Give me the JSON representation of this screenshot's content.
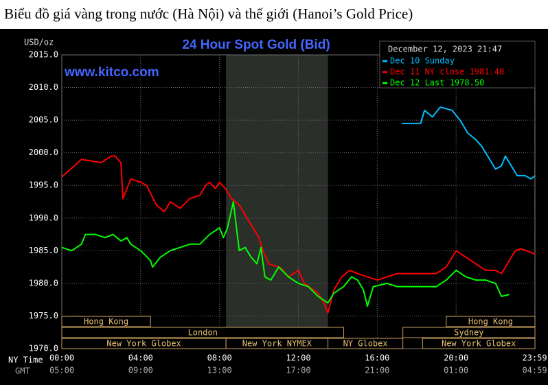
{
  "page_title": "Biểu đồ giá vàng trong nước (Hà Nội) và thế giới (Hanoi’s Gold Price)",
  "chart_data": {
    "type": "line",
    "title": "24 Hour Spot Gold (Bid)",
    "watermark": "www.kitco.com",
    "y_unit": "USD/oz",
    "timestamp": "December 12, 2023 21:47",
    "x_row_labels": [
      "NY Time",
      "GMT"
    ],
    "xlim": [
      0,
      24
    ],
    "xticks": [
      {
        "value": 0,
        "label": "00:00"
      },
      {
        "value": 4,
        "label": "04:00"
      },
      {
        "value": 8,
        "label": "08:00"
      },
      {
        "value": 12,
        "label": "12:00"
      },
      {
        "value": 16,
        "label": "16:00"
      },
      {
        "value": 20,
        "label": "20:00"
      },
      {
        "value": 23.983,
        "label": "23:59"
      }
    ],
    "gmt_labels": [
      "05:00",
      "09:00",
      "13:00",
      "17:00",
      "21:00",
      "01:00",
      "04:59"
    ],
    "ylim": [
      1970,
      2015
    ],
    "yticks": [
      {
        "value": 1970,
        "label": "1970.0"
      },
      {
        "value": 1975,
        "label": "1975.0"
      },
      {
        "value": 1980,
        "label": "1980.0"
      },
      {
        "value": 1985,
        "label": "1985.0"
      },
      {
        "value": 1990,
        "label": "1990.0"
      },
      {
        "value": 1995,
        "label": "1995.0"
      },
      {
        "value": 2000,
        "label": "2000.0"
      },
      {
        "value": 2005,
        "label": "2005.0"
      },
      {
        "value": 2010,
        "label": "2010.0"
      },
      {
        "value": 2015,
        "label": "2015.0"
      }
    ],
    "grid": true,
    "shaded_range": [
      8.33,
      13.5
    ],
    "session_rows": [
      [
        {
          "name": "Hong Kong",
          "start": 0,
          "end": 4.5
        },
        {
          "name": "Hong Kong",
          "start": 19.5,
          "end": 24
        }
      ],
      [
        {
          "name": "London",
          "start": 0,
          "end": 14.3
        },
        {
          "name": "Sydney",
          "start": 17.3,
          "end": 24
        }
      ],
      [
        {
          "name": "New York Globex",
          "start": 0,
          "end": 8.33
        },
        {
          "name": "New York NYMEX",
          "start": 8.33,
          "end": 13.5
        },
        {
          "name": "NY Globex",
          "start": 13.5,
          "end": 17.3
        },
        {
          "name": "New York Globex",
          "start": 18.3,
          "end": 24
        }
      ]
    ],
    "series": [
      {
        "name": "Dec 10 Sunday",
        "color": "#00bfff",
        "x": [
          17.25,
          18.2,
          18.4,
          18.8,
          19.2,
          19.8,
          20.2,
          20.6,
          21,
          21.3,
          21.6,
          22,
          22.3,
          22.5,
          22.8,
          23.1,
          23.5,
          23.8,
          24
        ],
        "values": [
          2004.5,
          2004.5,
          2006.5,
          2005.5,
          2007,
          2006.5,
          2005,
          2003,
          2002,
          2001,
          1999.5,
          1997.5,
          1998,
          1999.5,
          1998,
          1996.5,
          1996.5,
          1996,
          1996.5
        ]
      },
      {
        "name": "Dec 11 NY close 1981.40",
        "color": "#ff0000",
        "x": [
          0,
          1,
          2,
          2.5,
          2.7,
          3,
          3.1,
          3.5,
          4,
          4.3,
          4.8,
          5.2,
          5.5,
          6,
          6.5,
          7,
          7.3,
          7.5,
          7.8,
          8,
          8.3,
          8.6,
          9,
          9.2,
          9.6,
          10,
          10.2,
          10.5,
          11.1,
          11.5,
          12,
          12.3,
          13,
          13.3,
          13.5,
          13.8,
          14.2,
          14.6,
          15,
          15.5,
          16,
          16.5,
          17,
          18,
          19,
          19.5,
          20,
          20.5,
          21,
          21.5,
          22,
          22.3,
          22.6,
          23,
          23.3,
          24
        ],
        "values": [
          1996.3,
          1999,
          1998.5,
          1999.5,
          1999.5,
          1998.5,
          1993,
          1996,
          1995.5,
          1995,
          1992,
          1991,
          1992.5,
          1991.5,
          1993,
          1993.5,
          1995,
          1995.5,
          1994.5,
          1995.5,
          1994.5,
          1993,
          1992,
          1991,
          1989,
          1987,
          1985,
          1983,
          1982.4,
          1981,
          1982,
          1980,
          1978.5,
          1977,
          1975.5,
          1979,
          1981,
          1982,
          1981.5,
          1981,
          1980.5,
          1981,
          1981.5,
          1981.5,
          1981.5,
          1982.5,
          1985,
          1984,
          1983,
          1982,
          1982,
          1981.5,
          1983,
          1985,
          1985.3,
          1984.5
        ]
      },
      {
        "name": "Dec 12 Last 1978.50",
        "color": "#00ff00",
        "x": [
          0,
          0.5,
          1,
          1.2,
          1.7,
          2.2,
          2.6,
          3,
          3.3,
          3.5,
          4,
          4.5,
          4.6,
          5,
          5.5,
          6,
          6.5,
          7,
          7.5,
          8,
          8.2,
          8.4,
          8.7,
          9,
          9.3,
          9.6,
          9.9,
          10.1,
          10.3,
          10.6,
          11,
          11.5,
          12,
          12.5,
          13,
          13.5,
          13.8,
          14.3,
          14.7,
          15,
          15.3,
          15.5,
          15.8,
          16.5,
          17,
          18,
          19,
          19.5,
          20,
          20.5,
          21,
          21.5,
          22,
          22.3,
          22.7
        ],
        "values": [
          1985.5,
          1985,
          1986,
          1987.5,
          1987.5,
          1987,
          1987.5,
          1986.5,
          1987,
          1986,
          1985,
          1983.5,
          1982.5,
          1984,
          1985,
          1985.5,
          1986,
          1986,
          1987.5,
          1988.5,
          1987,
          1988.5,
          1992.5,
          1985,
          1985.5,
          1984,
          1983,
          1985.5,
          1981,
          1980.5,
          1982.5,
          1981,
          1980,
          1979.5,
          1978,
          1977,
          1978.5,
          1979.5,
          1981,
          1980.5,
          1979,
          1976.5,
          1979.5,
          1980,
          1979.5,
          1979.5,
          1979.5,
          1980.5,
          1982,
          1981,
          1980.5,
          1980.5,
          1980,
          1978,
          1978.3
        ]
      }
    ]
  }
}
